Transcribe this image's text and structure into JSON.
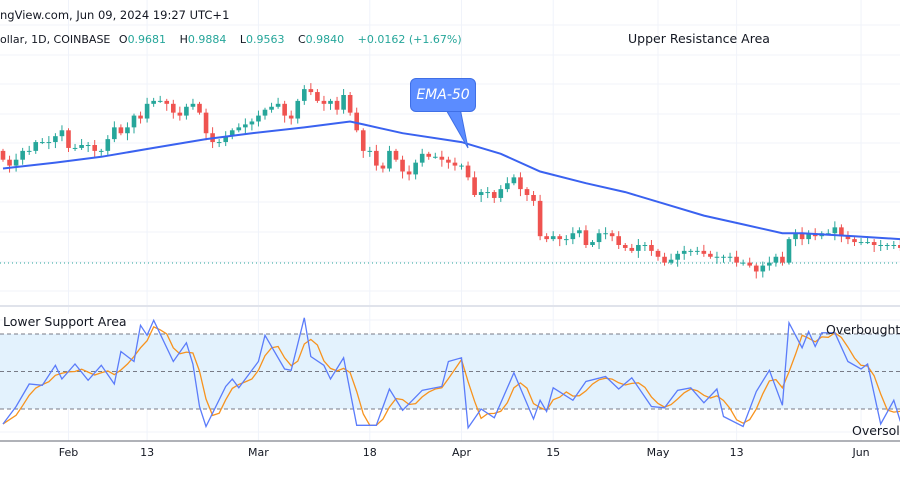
{
  "header": {
    "source_text": "ngView.com, Jun 09, 2024 19:27 UTC+1",
    "symbol": "ollar, 1D, COINBASE",
    "open_label": "O",
    "open": "0.9681",
    "high_label": "H",
    "high": "0.9884",
    "low_label": "L",
    "low": "0.9563",
    "close_label": "C",
    "close": "0.9840",
    "change": "+0.0162 (+1.67%)"
  },
  "annotations": {
    "upper": "Upper Resistance Area",
    "lower": "Lower Support Area",
    "overbought": "Overbought",
    "oversold": "Oversold",
    "ema_callout": "EMA-50"
  },
  "colors": {
    "up": "#26a69a",
    "down": "#ef5350",
    "ema": "#3a62f0",
    "stoch_k": "#5b7cfa",
    "stoch_d": "#f7931e",
    "band": "#e3f2fd"
  },
  "chart_data": [
    {
      "type": "candlestick",
      "interval": "1D",
      "candles_close": [
        [
          "2024-01-22",
          1.013
        ],
        [
          "2024-01-23",
          1.011
        ],
        [
          "2024-01-24",
          1.013
        ],
        [
          "2024-01-25",
          1.016
        ],
        [
          "2024-01-26",
          1.016
        ],
        [
          "2024-01-27",
          1.019
        ],
        [
          "2024-01-28",
          1.019
        ],
        [
          "2024-01-29",
          1.019
        ],
        [
          "2024-01-30",
          1.021
        ],
        [
          "2024-01-31",
          1.023
        ],
        [
          "2024-02-01",
          1.017
        ],
        [
          "2024-02-02",
          1.017
        ],
        [
          "2024-02-03",
          1.018
        ],
        [
          "2024-02-04",
          1.018
        ],
        [
          "2024-02-05",
          1.016
        ],
        [
          "2024-02-06",
          1.016
        ],
        [
          "2024-02-07",
          1.02
        ],
        [
          "2024-02-08",
          1.024
        ],
        [
          "2024-02-09",
          1.022
        ],
        [
          "2024-02-10",
          1.024
        ],
        [
          "2024-02-11",
          1.028
        ],
        [
          "2024-02-12",
          1.027
        ],
        [
          "2024-02-13",
          1.032
        ],
        [
          "2024-02-14",
          1.033
        ],
        [
          "2024-02-15",
          1.033
        ],
        [
          "2024-02-16",
          1.032
        ],
        [
          "2024-02-17",
          1.029
        ],
        [
          "2024-02-18",
          1.028
        ],
        [
          "2024-02-19",
          1.031
        ],
        [
          "2024-02-20",
          1.032
        ],
        [
          "2024-02-21",
          1.029
        ],
        [
          "2024-02-22",
          1.022
        ],
        [
          "2024-02-23",
          1.019
        ],
        [
          "2024-02-24",
          1.019
        ],
        [
          "2024-02-25",
          1.021
        ],
        [
          "2024-02-26",
          1.023
        ],
        [
          "2024-02-27",
          1.024
        ],
        [
          "2024-02-28",
          1.025
        ],
        [
          "2024-02-29",
          1.026
        ],
        [
          "2024-03-01",
          1.028
        ],
        [
          "2024-03-02",
          1.03
        ],
        [
          "2024-03-03",
          1.031
        ],
        [
          "2024-03-04",
          1.032
        ],
        [
          "2024-03-05",
          1.028
        ],
        [
          "2024-03-06",
          1.027
        ],
        [
          "2024-03-07",
          1.033
        ],
        [
          "2024-03-08",
          1.037
        ],
        [
          "2024-03-09",
          1.036
        ],
        [
          "2024-03-10",
          1.033
        ],
        [
          "2024-03-11",
          1.032
        ],
        [
          "2024-03-12",
          1.033
        ],
        [
          "2024-03-13",
          1.03
        ],
        [
          "2024-03-14",
          1.035
        ],
        [
          "2024-03-15",
          1.029
        ],
        [
          "2024-03-16",
          1.023
        ],
        [
          "2024-03-17",
          1.016
        ],
        [
          "2024-03-18",
          1.016
        ],
        [
          "2024-03-19",
          1.011
        ],
        [
          "2024-03-20",
          1.01
        ],
        [
          "2024-03-21",
          1.016
        ],
        [
          "2024-03-22",
          1.013
        ],
        [
          "2024-03-23",
          1.009
        ],
        [
          "2024-03-24",
          1.008
        ],
        [
          "2024-03-25",
          1.012
        ],
        [
          "2024-03-26",
          1.015
        ],
        [
          "2024-03-27",
          1.014
        ],
        [
          "2024-03-28",
          1.014
        ],
        [
          "2024-03-29",
          1.013
        ],
        [
          "2024-03-30",
          1.012
        ],
        [
          "2024-03-31",
          1.011
        ],
        [
          "2024-04-01",
          1.011
        ],
        [
          "2024-04-02",
          1.007
        ],
        [
          "2024-04-03",
          1.001
        ],
        [
          "2024-04-04",
          1.002
        ],
        [
          "2024-04-05",
          1.002
        ],
        [
          "2024-04-06",
          1.0
        ],
        [
          "2024-04-07",
          1.003
        ],
        [
          "2024-04-08",
          1.005
        ],
        [
          "2024-04-09",
          1.007
        ],
        [
          "2024-04-10",
          1.003
        ],
        [
          "2024-04-11",
          1.001
        ],
        [
          "2024-04-12",
          0.999
        ],
        [
          "2024-04-13",
          0.987
        ],
        [
          "2024-04-14",
          0.986
        ],
        [
          "2024-04-15",
          0.987
        ],
        [
          "2024-04-16",
          0.986
        ],
        [
          "2024-04-17",
          0.986
        ],
        [
          "2024-04-18",
          0.988
        ],
        [
          "2024-04-19",
          0.989
        ],
        [
          "2024-04-20",
          0.984
        ],
        [
          "2024-04-21",
          0.985
        ],
        [
          "2024-04-22",
          0.988
        ],
        [
          "2024-04-23",
          0.988
        ],
        [
          "2024-04-24",
          0.987
        ],
        [
          "2024-04-25",
          0.984
        ],
        [
          "2024-04-26",
          0.983
        ],
        [
          "2024-04-27",
          0.982
        ],
        [
          "2024-04-28",
          0.984
        ],
        [
          "2024-04-29",
          0.984
        ],
        [
          "2024-04-30",
          0.982
        ],
        [
          "2024-05-01",
          0.98
        ],
        [
          "2024-05-02",
          0.978
        ],
        [
          "2024-05-03",
          0.979
        ],
        [
          "2024-05-04",
          0.981
        ],
        [
          "2024-05-05",
          0.982
        ],
        [
          "2024-05-06",
          0.982
        ],
        [
          "2024-05-07",
          0.982
        ],
        [
          "2024-05-08",
          0.981
        ],
        [
          "2024-05-09",
          0.98
        ],
        [
          "2024-05-10",
          0.98
        ],
        [
          "2024-05-11",
          0.98
        ],
        [
          "2024-05-12",
          0.98
        ],
        [
          "2024-05-13",
          0.978
        ],
        [
          "2024-05-14",
          0.978
        ],
        [
          "2024-05-15",
          0.977
        ],
        [
          "2024-05-16",
          0.975
        ],
        [
          "2024-05-17",
          0.977
        ],
        [
          "2024-05-18",
          0.978
        ],
        [
          "2024-05-19",
          0.98
        ],
        [
          "2024-05-20",
          0.978
        ],
        [
          "2024-05-21",
          0.986
        ],
        [
          "2024-05-22",
          0.988
        ],
        [
          "2024-05-23",
          0.986
        ],
        [
          "2024-05-24",
          0.988
        ],
        [
          "2024-05-25",
          0.987
        ],
        [
          "2024-05-26",
          0.988
        ],
        [
          "2024-05-27",
          0.988
        ],
        [
          "2024-05-28",
          0.99
        ],
        [
          "2024-05-29",
          0.987
        ],
        [
          "2024-05-30",
          0.986
        ],
        [
          "2024-05-31",
          0.985
        ],
        [
          "2024-06-01",
          0.985
        ],
        [
          "2024-06-02",
          0.985
        ],
        [
          "2024-06-03",
          0.984
        ],
        [
          "2024-06-04",
          0.984
        ],
        [
          "2024-06-05",
          0.984
        ],
        [
          "2024-06-06",
          0.984
        ],
        [
          "2024-06-07",
          0.983
        ]
      ],
      "ema50": [
        [
          "2024-01-22",
          1.01
        ],
        [
          "2024-01-30",
          1.012
        ],
        [
          "2024-02-06",
          1.014
        ],
        [
          "2024-02-14",
          1.017
        ],
        [
          "2024-02-22",
          1.02
        ],
        [
          "2024-02-29",
          1.022
        ],
        [
          "2024-03-08",
          1.024
        ],
        [
          "2024-03-15",
          1.026
        ],
        [
          "2024-03-17",
          1.025
        ],
        [
          "2024-03-23",
          1.022
        ],
        [
          "2024-04-01",
          1.019
        ],
        [
          "2024-04-07",
          1.015
        ],
        [
          "2024-04-13",
          1.009
        ],
        [
          "2024-04-20",
          1.005
        ],
        [
          "2024-04-26",
          1.002
        ],
        [
          "2024-05-02",
          0.998
        ],
        [
          "2024-05-08",
          0.994
        ],
        [
          "2024-05-14",
          0.991
        ],
        [
          "2024-05-20",
          0.988
        ],
        [
          "2024-05-23",
          0.988
        ],
        [
          "2024-05-31",
          0.987
        ],
        [
          "2024-06-07",
          0.986
        ]
      ]
    },
    {
      "type": "line",
      "indicator": "Stochastic RSI",
      "ylim": [
        0,
        100
      ],
      "levels": [
        80,
        50,
        20
      ],
      "k": [
        [
          "2024-01-22",
          8
        ],
        [
          "2024-01-24",
          22
        ],
        [
          "2024-01-26",
          40
        ],
        [
          "2024-01-28",
          39
        ],
        [
          "2024-01-30",
          55
        ],
        [
          "2024-01-31",
          44
        ],
        [
          "2024-02-02",
          56
        ],
        [
          "2024-02-04",
          43
        ],
        [
          "2024-02-06",
          55
        ],
        [
          "2024-02-08",
          40
        ],
        [
          "2024-02-09",
          66
        ],
        [
          "2024-02-11",
          58
        ],
        [
          "2024-02-12",
          87
        ],
        [
          "2024-02-13",
          79
        ],
        [
          "2024-02-14",
          91
        ],
        [
          "2024-02-17",
          58
        ],
        [
          "2024-02-19",
          73
        ],
        [
          "2024-02-20",
          56
        ],
        [
          "2024-02-21",
          22
        ],
        [
          "2024-02-22",
          6
        ],
        [
          "2024-02-25",
          38
        ],
        [
          "2024-02-26",
          44
        ],
        [
          "2024-02-27",
          37
        ],
        [
          "2024-03-01",
          58
        ],
        [
          "2024-03-02",
          79
        ],
        [
          "2024-03-05",
          52
        ],
        [
          "2024-03-06",
          51
        ],
        [
          "2024-03-08",
          93
        ],
        [
          "2024-03-09",
          62
        ],
        [
          "2024-03-11",
          55
        ],
        [
          "2024-03-12",
          44
        ],
        [
          "2024-03-14",
          61
        ],
        [
          "2024-03-16",
          7
        ],
        [
          "2024-03-19",
          7
        ],
        [
          "2024-03-21",
          36
        ],
        [
          "2024-03-23",
          19
        ],
        [
          "2024-03-26",
          35
        ],
        [
          "2024-03-29",
          38
        ],
        [
          "2024-03-30",
          58
        ],
        [
          "2024-04-01",
          61
        ],
        [
          "2024-04-02",
          5
        ],
        [
          "2024-04-04",
          20
        ],
        [
          "2024-04-06",
          13
        ],
        [
          "2024-04-09",
          49
        ],
        [
          "2024-04-12",
          12
        ],
        [
          "2024-04-13",
          27
        ],
        [
          "2024-04-14",
          18
        ],
        [
          "2024-04-15",
          37
        ],
        [
          "2024-04-18",
          27
        ],
        [
          "2024-04-20",
          42
        ],
        [
          "2024-04-23",
          46
        ],
        [
          "2024-04-25",
          36
        ],
        [
          "2024-04-27",
          45
        ],
        [
          "2024-04-30",
          22
        ],
        [
          "2024-05-02",
          21
        ],
        [
          "2024-05-04",
          35
        ],
        [
          "2024-05-06",
          37
        ],
        [
          "2024-05-08",
          25
        ],
        [
          "2024-05-10",
          36
        ],
        [
          "2024-05-11",
          14
        ],
        [
          "2024-05-14",
          6
        ],
        [
          "2024-05-16",
          34
        ],
        [
          "2024-05-18",
          51
        ],
        [
          "2024-05-20",
          23
        ],
        [
          "2024-05-21",
          89
        ],
        [
          "2024-05-23",
          69
        ],
        [
          "2024-05-24",
          82
        ],
        [
          "2024-05-25",
          70
        ],
        [
          "2024-05-26",
          81
        ],
        [
          "2024-05-28",
          81
        ],
        [
          "2024-05-30",
          58
        ],
        [
          "2024-06-01",
          52
        ],
        [
          "2024-06-02",
          56
        ],
        [
          "2024-06-04",
          8
        ],
        [
          "2024-06-06",
          27
        ],
        [
          "2024-06-07",
          10
        ]
      ]
    }
  ],
  "x_ticks": [
    {
      "label": "Feb",
      "date": "2024-02-01"
    },
    {
      "label": "13",
      "date": "2024-02-13"
    },
    {
      "label": "Mar",
      "date": "2024-03-01"
    },
    {
      "label": "18",
      "date": "2024-03-18"
    },
    {
      "label": "Apr",
      "date": "2024-04-01"
    },
    {
      "label": "15",
      "date": "2024-04-15"
    },
    {
      "label": "May",
      "date": "2024-05-01"
    },
    {
      "label": "13",
      "date": "2024-05-13"
    },
    {
      "label": "Jun",
      "date": "2024-06-01"
    }
  ]
}
